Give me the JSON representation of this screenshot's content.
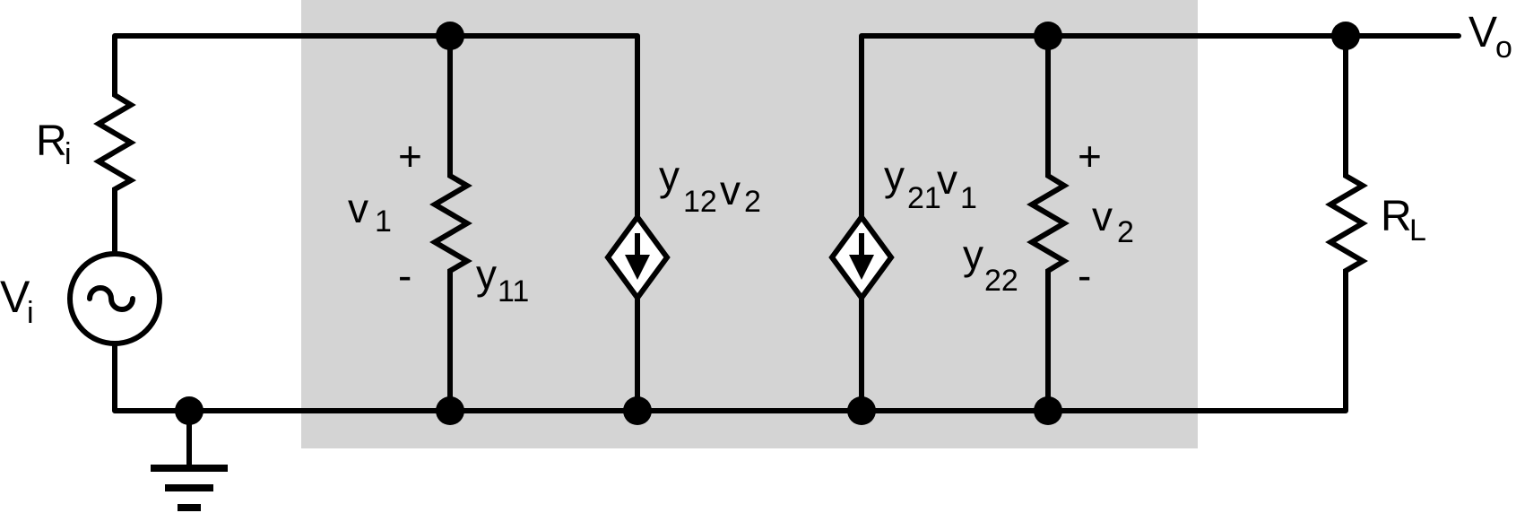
{
  "diagram": {
    "colors": {
      "background": "#ffffff",
      "two_port_box": "#d4d4d4",
      "ink": "#000000"
    },
    "labels": {
      "source_voltage": {
        "main": "V",
        "sub": "i"
      },
      "source_resistance": {
        "main": "R",
        "sub": "i"
      },
      "load_resistance": {
        "main": "R",
        "sub": "L"
      },
      "output_voltage": {
        "main": "V",
        "sub": "o"
      },
      "v1": {
        "main": "v",
        "sub": "1"
      },
      "v1_plus": "+",
      "v1_minus": "-",
      "y11": {
        "main": "y",
        "sub": "11"
      },
      "y12v2": {
        "main": "y",
        "sub": "12",
        "main2": "v",
        "sub2": "2"
      },
      "y21v1": {
        "main": "y",
        "sub": "21",
        "main2": "v",
        "sub2": "1"
      },
      "y22": {
        "main": "y",
        "sub": "22"
      },
      "v2": {
        "main": "v",
        "sub": "2"
      },
      "v2_plus": "+",
      "v2_minus": "-"
    },
    "icons": [
      "ac-voltage-source-icon",
      "resistor-icon",
      "dependent-current-source-icon",
      "ground-icon"
    ]
  }
}
